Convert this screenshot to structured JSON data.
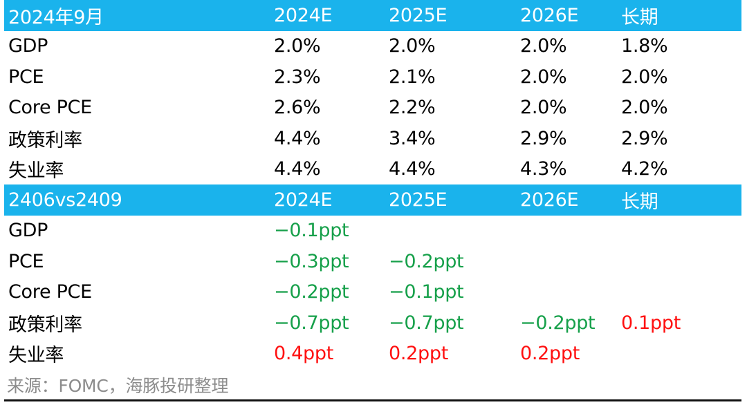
{
  "section1": {
    "header": [
      "2024年9月",
      "2024E",
      "2025E",
      "2026E",
      "长期"
    ],
    "rows": [
      {
        "label": "GDP",
        "values": [
          "2.0%",
          "2.0%",
          "2.0%",
          "1.8%"
        ]
      },
      {
        "label": "PCE",
        "values": [
          "2.3%",
          "2.1%",
          "2.0%",
          "2.0%"
        ]
      },
      {
        "label": "Core PCE",
        "values": [
          "2.6%",
          "2.2%",
          "2.0%",
          "2.0%"
        ]
      },
      {
        "label": "政策利率",
        "values": [
          "4.4%",
          "3.4%",
          "2.9%",
          "2.9%"
        ]
      },
      {
        "label": "失业率",
        "values": [
          "4.4%",
          "4.4%",
          "4.3%",
          "4.2%"
        ]
      }
    ]
  },
  "section2": {
    "header": [
      "2406vs2409",
      "2024E",
      "2025E",
      "2026E",
      "长期"
    ],
    "rows": [
      {
        "label": "GDP",
        "values": [
          "−0.1ppt",
          "",
          "",
          ""
        ]
      },
      {
        "label": "PCE",
        "values": [
          "−0.3ppt",
          "−0.2ppt",
          "",
          ""
        ]
      },
      {
        "label": "Core PCE",
        "values": [
          "−0.2ppt",
          "−0.1ppt",
          "",
          ""
        ]
      },
      {
        "label": "政策利率",
        "values": [
          "−0.7ppt",
          "−0.7ppt",
          "−0.2ppt",
          "0.1ppt"
        ]
      },
      {
        "label": "失业率",
        "values": [
          "0.4ppt",
          "0.2ppt",
          "0.2ppt",
          ""
        ]
      }
    ]
  },
  "colors": {
    "header_bg": "#1ab3ec",
    "negative": "#16a04a",
    "positive": "#ff1010",
    "source_text": "#8c8c8c"
  },
  "source": "来源：FOMC，海豚投研整理"
}
